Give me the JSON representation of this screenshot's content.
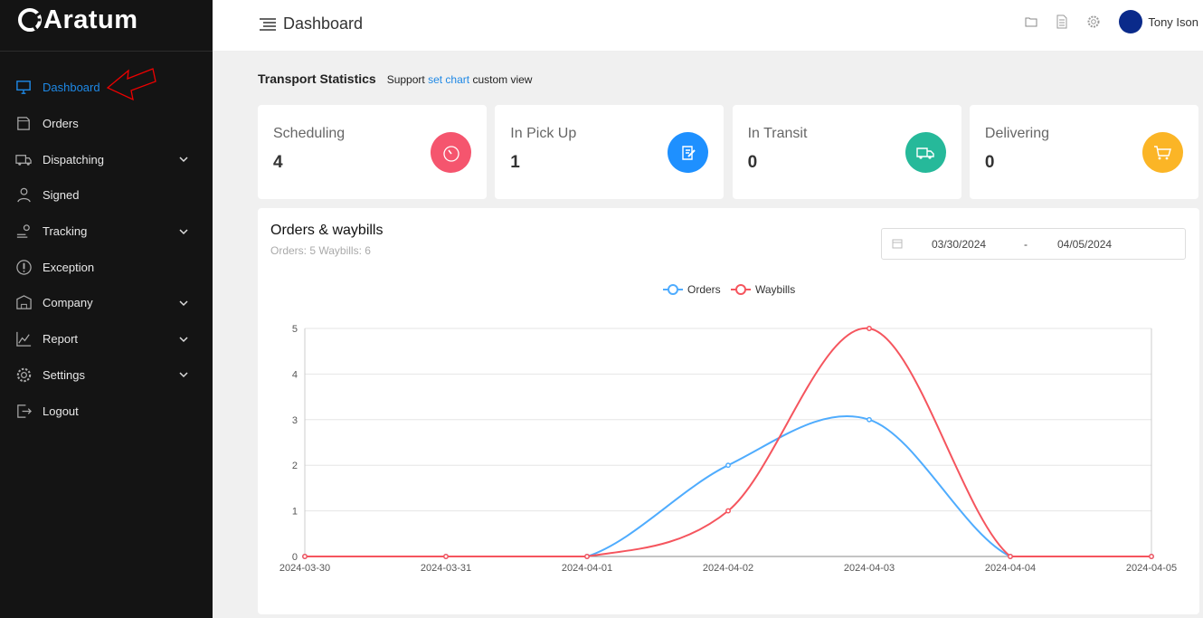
{
  "brand": "Aratum",
  "sidebar": {
    "items": [
      {
        "label": "Dashboard",
        "icon": "monitor-icon",
        "active": true
      },
      {
        "label": "Orders",
        "icon": "orders-icon"
      },
      {
        "label": "Dispatching",
        "icon": "truck-icon",
        "expandable": true
      },
      {
        "label": "Signed",
        "icon": "person-icon"
      },
      {
        "label": "Tracking",
        "icon": "tracking-icon",
        "expandable": true
      },
      {
        "label": "Exception",
        "icon": "exclamation-icon"
      },
      {
        "label": "Company",
        "icon": "company-icon",
        "expandable": true
      },
      {
        "label": "Report",
        "icon": "report-icon",
        "expandable": true
      },
      {
        "label": "Settings",
        "icon": "gear-icon",
        "expandable": true
      },
      {
        "label": "Logout",
        "icon": "logout-icon"
      }
    ]
  },
  "header": {
    "title": "Dashboard",
    "user": "Tony Ison"
  },
  "stats": {
    "title": "Transport Statistics",
    "support_pre": "Support",
    "support_link": "set chart",
    "support_post": "custom view",
    "cards": [
      {
        "label": "Scheduling",
        "value": "4",
        "color": "#f5556e",
        "icon": "timer-icon"
      },
      {
        "label": "In Pick Up",
        "value": "1",
        "color": "#1e90ff",
        "icon": "edit-icon"
      },
      {
        "label": "In Transit",
        "value": "0",
        "color": "#26b99a",
        "icon": "truck-icon"
      },
      {
        "label": "Delivering",
        "value": "0",
        "color": "#fbb526",
        "icon": "delivery-icon"
      }
    ]
  },
  "chart_card": {
    "title": "Orders & waybills",
    "summary": "Orders: 5  Waybills: 6",
    "date_from": "03/30/2024",
    "date_sep": "-",
    "date_to": "04/05/2024"
  },
  "chart_data": {
    "type": "line",
    "smooth": true,
    "categories": [
      "2024-03-30",
      "2024-03-31",
      "2024-04-01",
      "2024-04-02",
      "2024-04-03",
      "2024-04-04",
      "2024-04-05"
    ],
    "series": [
      {
        "name": "Orders",
        "color": "#4facfe",
        "values": [
          0,
          0,
          0,
          2,
          3,
          0,
          0
        ]
      },
      {
        "name": "Waybills",
        "color": "#f5555e",
        "values": [
          0,
          0,
          0,
          1,
          5,
          0,
          0
        ]
      }
    ],
    "ylim": [
      0,
      5
    ],
    "yticks": [
      0,
      1,
      2,
      3,
      4,
      5
    ],
    "grid": true,
    "legend": "top-center"
  }
}
